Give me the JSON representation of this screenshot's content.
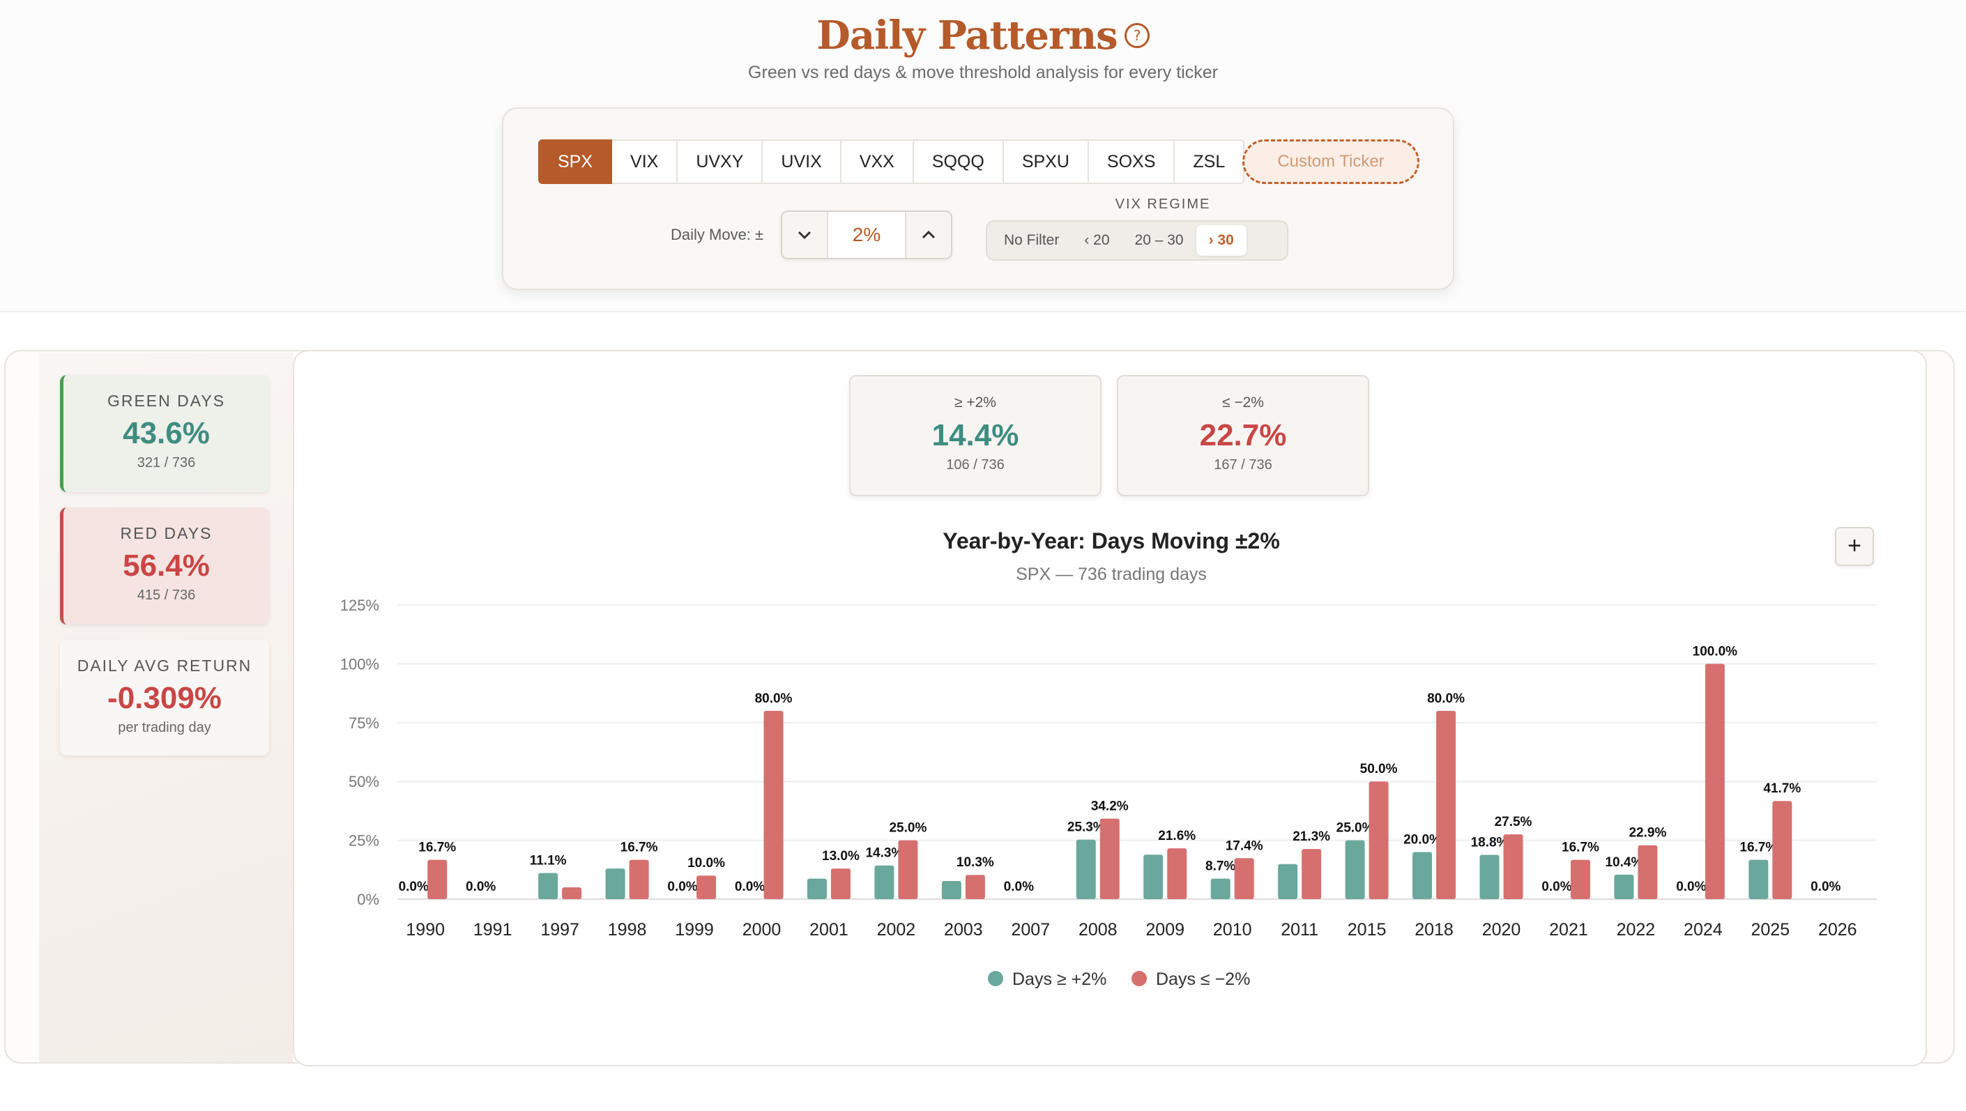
{
  "header": {
    "title": "Daily Patterns",
    "help_icon": "question-circle-icon",
    "subtitle": "Green vs red days & move threshold analysis for every ticker"
  },
  "tickers": [
    "SPX",
    "VIX",
    "UVXY",
    "UVIX",
    "VXX",
    "SQQQ",
    "SPXU",
    "SOXS",
    "ZSL"
  ],
  "active_ticker": "SPX",
  "custom_ticker_label": "Custom Ticker",
  "daily_move": {
    "label": "Daily Move: ±",
    "value": "2%"
  },
  "vix_regime": {
    "label": "VIX REGIME",
    "options": [
      "No Filter",
      "‹ 20",
      "20 – 30",
      "› 30"
    ],
    "selected": "› 30"
  },
  "stats": {
    "green": {
      "label": "GREEN DAYS",
      "value": "43.6%",
      "sub": "321 / 736"
    },
    "red": {
      "label": "RED DAYS",
      "value": "56.4%",
      "sub": "415 / 736"
    },
    "avg": {
      "label": "DAILY AVG RETURN",
      "value": "-0.309%",
      "sub": "per trading day"
    }
  },
  "threshold_cards": {
    "up": {
      "label": "≥ +2%",
      "value": "14.4%",
      "sub": "106 / 736"
    },
    "down": {
      "label": "≤ −2%",
      "value": "22.7%",
      "sub": "167 / 736"
    }
  },
  "colors": {
    "accent": "#b55a2a",
    "green": "#6aa89c",
    "red": "#d6706e",
    "green_text": "#3f8c80",
    "red_text": "#c94646"
  },
  "chart_data": {
    "type": "bar",
    "title": "Year-by-Year: Days Moving ±2%",
    "subtitle": "SPX — 736 trading days",
    "categories": [
      "1990",
      "1991",
      "1997",
      "1998",
      "1999",
      "2000",
      "2001",
      "2002",
      "2003",
      "2007",
      "2008",
      "2009",
      "2010",
      "2011",
      "2015",
      "2018",
      "2020",
      "2021",
      "2022",
      "2024",
      "2025",
      "2026"
    ],
    "series": [
      {
        "name": "Days ≥ +2%",
        "values": [
          0.0,
          0.0,
          11.1,
          13.0,
          0.0,
          0.0,
          8.7,
          14.3,
          7.7,
          0.0,
          25.3,
          18.9,
          8.7,
          14.9,
          25.0,
          20.0,
          18.8,
          0.0,
          10.4,
          0.0,
          16.7,
          0.0
        ],
        "labels": [
          "0.0%",
          "0.0%",
          "11.1%",
          "",
          "0.0%",
          "0.0%",
          "",
          "14.3%",
          "",
          "0.0%",
          "25.3%",
          "",
          "8.7%",
          "",
          "25.0%",
          "20.0%",
          "18.8%",
          "0.0%",
          "10.4%",
          "0.0%",
          "16.7%",
          "0.0%"
        ]
      },
      {
        "name": "Days ≤ −2%",
        "values": [
          16.7,
          null,
          5.0,
          16.7,
          10.0,
          80.0,
          13.0,
          25.0,
          10.3,
          null,
          34.2,
          21.6,
          17.4,
          21.3,
          50.0,
          80.0,
          27.5,
          16.7,
          22.9,
          100.0,
          41.7,
          null
        ],
        "labels": [
          "16.7%",
          "",
          "",
          "16.7%",
          "10.0%",
          "80.0%",
          "13.0%",
          "25.0%",
          "10.3%",
          "",
          "34.2%",
          "21.6%",
          "17.4%",
          "21.3%",
          "50.0%",
          "80.0%",
          "27.5%",
          "16.7%",
          "22.9%",
          "100.0%",
          "41.7%",
          ""
        ]
      }
    ],
    "y_ticks": [
      "0%",
      "25%",
      "50%",
      "75%",
      "100%",
      "125%"
    ],
    "ylim": [
      0,
      125
    ],
    "legend_position": "bottom-center"
  }
}
